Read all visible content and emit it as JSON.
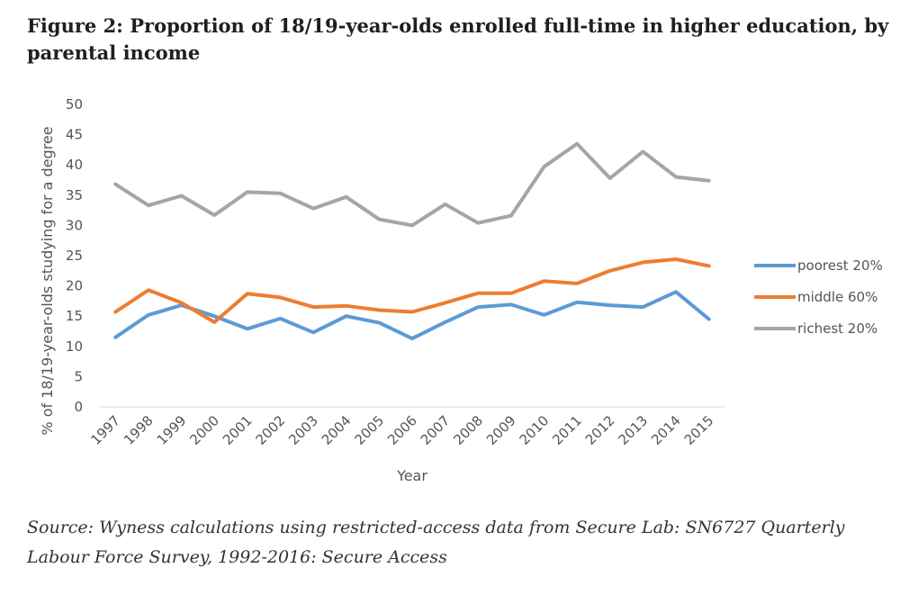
{
  "figure": {
    "title": "Figure 2: Proportion of 18/19-year-olds enrolled full-time in higher education, by parental income",
    "source": "Source:  Wyness calculations using restricted-access data from Secure Lab: SN6727 Quarterly Labour Force Survey, 1992-2016: Secure Access"
  },
  "chart_data": {
    "type": "line",
    "title": "Figure 2: Proportion of 18/19-year-olds enrolled full-time in higher education, by parental income",
    "xlabel": "Year",
    "ylabel": "% of 18/19-year-olds studying for a degree",
    "categories": [
      "1997",
      "1998",
      "1999",
      "2000",
      "2001",
      "2002",
      "2003",
      "2004",
      "2005",
      "2006",
      "2007",
      "2008",
      "2009",
      "2010",
      "2011",
      "2012",
      "2013",
      "2014",
      "2015"
    ],
    "ylim": [
      0,
      50
    ],
    "yticks": [
      0,
      5,
      10,
      15,
      20,
      25,
      30,
      35,
      40,
      45,
      50
    ],
    "grid": false,
    "legend": "right",
    "series": [
      {
        "name": "poorest 20%",
        "color": "#5b9bd5",
        "values": [
          11.5,
          15.2,
          16.8,
          15.0,
          12.9,
          14.6,
          12.3,
          15.0,
          13.9,
          11.3,
          14.0,
          16.5,
          16.9,
          15.2,
          17.3,
          16.8,
          16.5,
          19.0,
          14.5
        ]
      },
      {
        "name": "middle 60%",
        "color": "#ed7d31",
        "values": [
          15.7,
          19.3,
          17.2,
          14.0,
          18.7,
          18.1,
          16.5,
          16.7,
          16.0,
          15.7,
          17.2,
          18.8,
          18.8,
          20.8,
          20.4,
          22.5,
          23.9,
          24.4,
          23.3
        ]
      },
      {
        "name": "richest 20%",
        "color": "#a5a5a5",
        "values": [
          36.8,
          33.3,
          34.9,
          31.7,
          35.5,
          35.3,
          32.8,
          34.7,
          31.0,
          30.0,
          33.5,
          30.4,
          31.6,
          39.7,
          43.5,
          37.8,
          42.2,
          38.0,
          37.4
        ]
      }
    ]
  }
}
